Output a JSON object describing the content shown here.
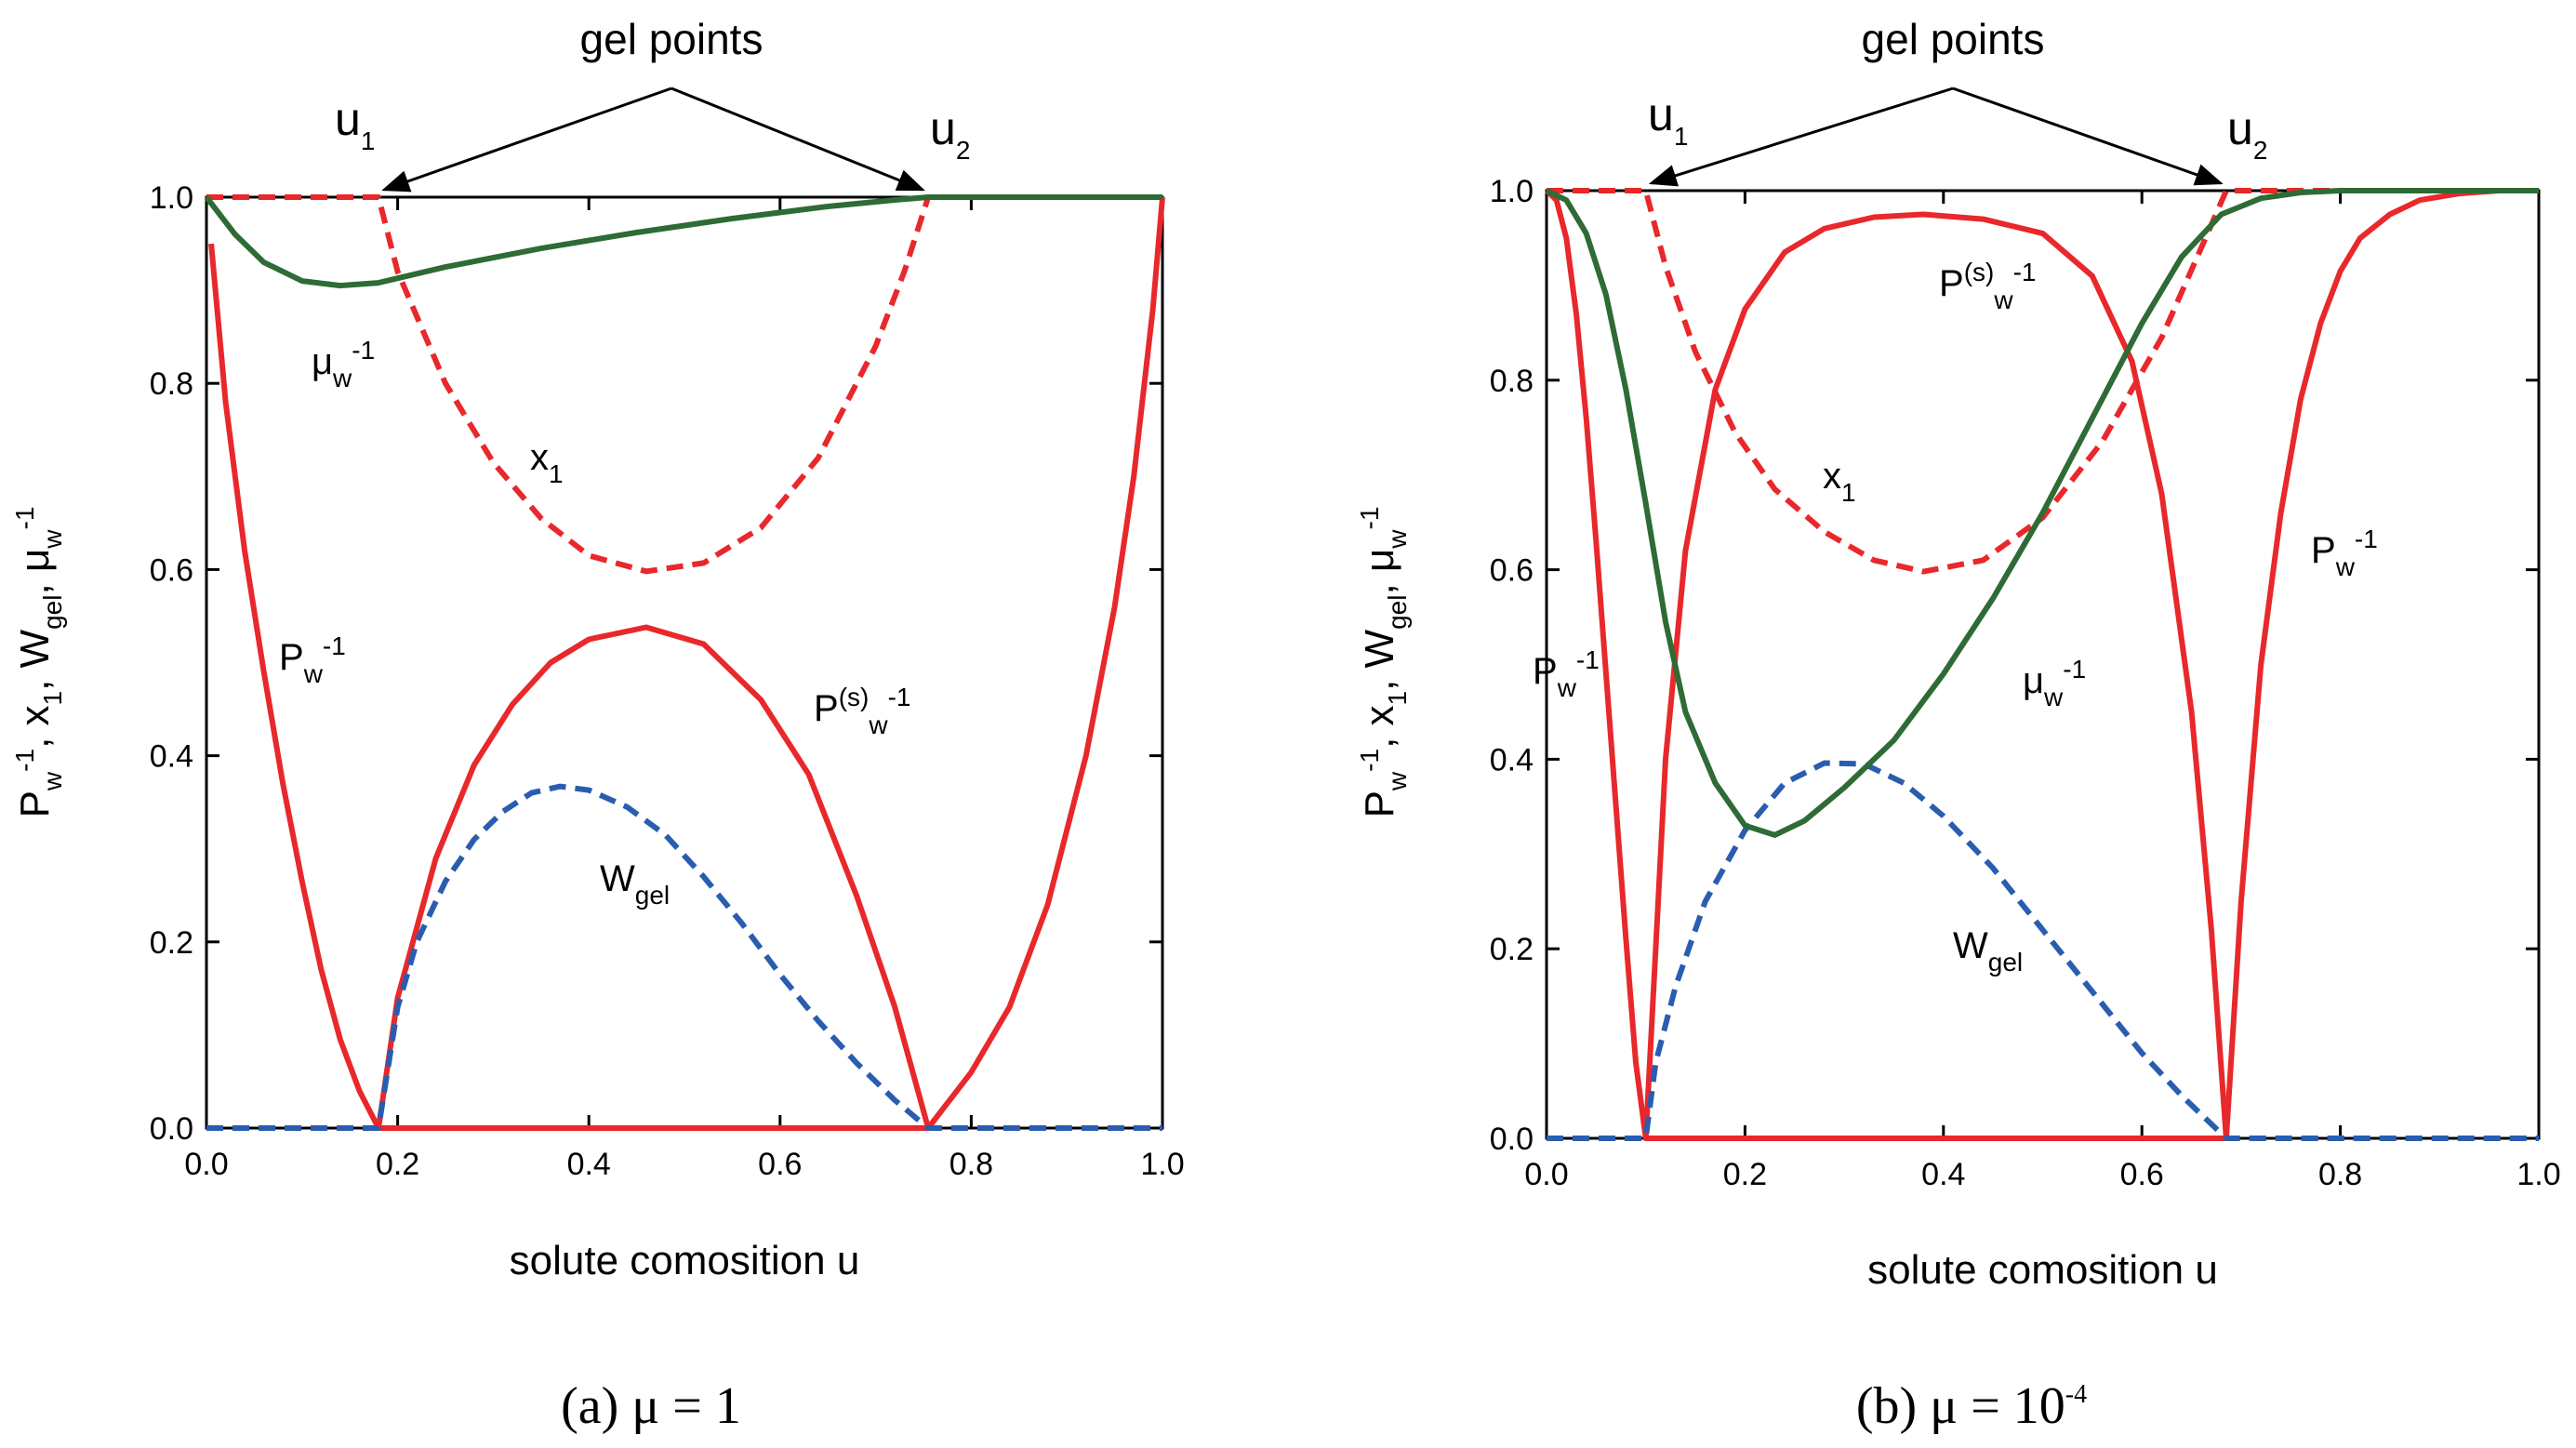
{
  "figure": {
    "gel_points_label": "gel points",
    "u1_main": "u",
    "u1_sub": "1",
    "u2_main": "u",
    "u2_sub": "2"
  },
  "chart_data": [
    {
      "type": "line",
      "id": "a",
      "caption": "(a)  μ = 1",
      "xlabel": "solute comosition  u",
      "ylabel": "P_w^-1, x_1, W_gel, μ_w^-1",
      "xlim": [
        0,
        1
      ],
      "ylim": [
        0,
        1
      ],
      "xticks": [
        "0.0",
        "0.2",
        "0.4",
        "0.6",
        "0.8",
        "1.0"
      ],
      "yticks": [
        "0.0",
        "0.2",
        "0.4",
        "0.6",
        "0.8",
        "1.0"
      ],
      "gel_points": {
        "u1": 0.18,
        "u2": 0.755
      },
      "series": [
        {
          "name": "P_w^-1",
          "color": "#e8282b",
          "dash": false,
          "x": [
            0.005,
            0.02,
            0.04,
            0.06,
            0.08,
            0.1,
            0.12,
            0.14,
            0.16,
            0.18,
            0.755,
            0.8,
            0.84,
            0.88,
            0.92,
            0.95,
            0.97,
            0.99,
            1.0
          ],
          "y": [
            0.95,
            0.78,
            0.62,
            0.49,
            0.37,
            0.265,
            0.17,
            0.095,
            0.04,
            0.0,
            0.0,
            0.06,
            0.13,
            0.24,
            0.4,
            0.56,
            0.7,
            0.88,
            1.0
          ]
        },
        {
          "name": "x_1",
          "color": "#e8282b",
          "dash": true,
          "x": [
            0.0,
            0.18,
            0.2,
            0.25,
            0.3,
            0.35,
            0.4,
            0.46,
            0.52,
            0.58,
            0.64,
            0.7,
            0.73,
            0.755,
            1.0
          ],
          "y": [
            1.0,
            1.0,
            0.92,
            0.8,
            0.715,
            0.655,
            0.615,
            0.598,
            0.607,
            0.645,
            0.72,
            0.84,
            0.92,
            1.0,
            1.0
          ]
        },
        {
          "name": "P^(s)_w^-1",
          "color": "#e8282b",
          "dash": false,
          "x": [
            0.18,
            0.2,
            0.24,
            0.28,
            0.32,
            0.36,
            0.4,
            0.46,
            0.52,
            0.58,
            0.63,
            0.68,
            0.72,
            0.755
          ],
          "y": [
            0.0,
            0.14,
            0.29,
            0.39,
            0.455,
            0.5,
            0.525,
            0.538,
            0.52,
            0.46,
            0.38,
            0.25,
            0.13,
            0.0
          ]
        },
        {
          "name": "W_gel",
          "color": "#2a5db0",
          "dash": true,
          "x": [
            0.0,
            0.18,
            0.2,
            0.22,
            0.25,
            0.28,
            0.31,
            0.34,
            0.37,
            0.4,
            0.44,
            0.48,
            0.52,
            0.56,
            0.6,
            0.64,
            0.68,
            0.72,
            0.755,
            1.0
          ],
          "y": [
            0.0,
            0.0,
            0.13,
            0.2,
            0.265,
            0.31,
            0.34,
            0.36,
            0.367,
            0.363,
            0.345,
            0.315,
            0.27,
            0.22,
            0.165,
            0.115,
            0.07,
            0.03,
            0.0,
            0.0
          ]
        },
        {
          "name": "μ_w^-1",
          "color": "#2e6b35",
          "dash": false,
          "x": [
            0.0,
            0.03,
            0.06,
            0.1,
            0.14,
            0.18,
            0.25,
            0.35,
            0.45,
            0.55,
            0.65,
            0.72,
            0.755,
            1.0
          ],
          "y": [
            1.0,
            0.96,
            0.93,
            0.91,
            0.905,
            0.908,
            0.925,
            0.945,
            0.962,
            0.977,
            0.99,
            0.997,
            1.0,
            1.0
          ]
        }
      ],
      "annotations": [
        {
          "main": "μ",
          "sub": "w",
          "sup": "-1"
        },
        {
          "main": "x",
          "sub": "1",
          "sup": ""
        },
        {
          "main": "P",
          "sub": "w",
          "sup": "-1"
        },
        {
          "main": "P",
          "pre_sup": "(s)",
          "sub": "w",
          "sup": "-1"
        },
        {
          "main": "W",
          "sub": "gel",
          "sup": ""
        }
      ]
    },
    {
      "type": "line",
      "id": "b",
      "caption": "(b)  μ = 10",
      "caption_sup": "-4",
      "xlabel": "solute comosition  u",
      "ylabel": "P_w^-1, x_1, W_gel, μ_w^-1",
      "xlim": [
        0,
        1
      ],
      "ylim": [
        0,
        1
      ],
      "xticks": [
        "0.0",
        "0.2",
        "0.4",
        "0.6",
        "0.8",
        "1.0"
      ],
      "yticks": [
        "0.0",
        "0.2",
        "0.4",
        "0.6",
        "0.8",
        "1.0"
      ],
      "gel_points": {
        "u1": 0.1,
        "u2": 0.685
      },
      "series": [
        {
          "name": "P_w^-1",
          "color": "#e8282b",
          "dash": false,
          "x": [
            0.0,
            0.01,
            0.02,
            0.03,
            0.04,
            0.05,
            0.06,
            0.07,
            0.08,
            0.09,
            0.1,
            0.685,
            0.7,
            0.72,
            0.74,
            0.76,
            0.78,
            0.8,
            0.82,
            0.85,
            0.88,
            0.92,
            0.96,
            1.0
          ],
          "y": [
            1.0,
            0.99,
            0.95,
            0.87,
            0.76,
            0.63,
            0.49,
            0.35,
            0.21,
            0.08,
            0.0,
            0.0,
            0.25,
            0.5,
            0.66,
            0.78,
            0.86,
            0.915,
            0.95,
            0.975,
            0.99,
            0.997,
            1.0,
            1.0
          ]
        },
        {
          "name": "x_1",
          "color": "#e8282b",
          "dash": true,
          "x": [
            0.0,
            0.1,
            0.12,
            0.15,
            0.19,
            0.23,
            0.28,
            0.33,
            0.38,
            0.44,
            0.5,
            0.56,
            0.62,
            0.66,
            0.685,
            1.0
          ],
          "y": [
            1.0,
            1.0,
            0.92,
            0.83,
            0.745,
            0.685,
            0.64,
            0.61,
            0.598,
            0.61,
            0.655,
            0.735,
            0.845,
            0.94,
            1.0,
            1.0
          ]
        },
        {
          "name": "P^(s)_w^-1",
          "color": "#e8282b",
          "dash": false,
          "x": [
            0.1,
            0.11,
            0.12,
            0.14,
            0.17,
            0.2,
            0.24,
            0.28,
            0.33,
            0.38,
            0.44,
            0.5,
            0.55,
            0.59,
            0.62,
            0.65,
            0.67,
            0.685
          ],
          "y": [
            0.0,
            0.2,
            0.4,
            0.62,
            0.79,
            0.875,
            0.935,
            0.96,
            0.972,
            0.975,
            0.97,
            0.955,
            0.91,
            0.82,
            0.68,
            0.45,
            0.22,
            0.0
          ]
        },
        {
          "name": "W_gel",
          "color": "#2a5db0",
          "dash": true,
          "x": [
            0.0,
            0.1,
            0.11,
            0.13,
            0.16,
            0.2,
            0.24,
            0.28,
            0.32,
            0.36,
            0.4,
            0.45,
            0.5,
            0.55,
            0.6,
            0.64,
            0.685,
            1.0
          ],
          "y": [
            0.0,
            0.0,
            0.08,
            0.16,
            0.25,
            0.325,
            0.375,
            0.396,
            0.395,
            0.375,
            0.34,
            0.285,
            0.22,
            0.155,
            0.09,
            0.045,
            0.0,
            0.0
          ]
        },
        {
          "name": "μ_w^-1",
          "color": "#2e6b35",
          "dash": false,
          "x": [
            0.0,
            0.02,
            0.04,
            0.06,
            0.08,
            0.1,
            0.12,
            0.14,
            0.17,
            0.2,
            0.23,
            0.26,
            0.3,
            0.35,
            0.4,
            0.45,
            0.5,
            0.55,
            0.6,
            0.64,
            0.68,
            0.72,
            0.76,
            0.8,
            0.9,
            1.0
          ],
          "y": [
            1.0,
            0.99,
            0.955,
            0.89,
            0.79,
            0.67,
            0.545,
            0.45,
            0.375,
            0.33,
            0.32,
            0.335,
            0.37,
            0.42,
            0.49,
            0.57,
            0.66,
            0.76,
            0.86,
            0.93,
            0.975,
            0.992,
            0.998,
            1.0,
            1.0,
            1.0
          ]
        }
      ],
      "annotations": [
        {
          "main": "P",
          "pre_sup": "(s)",
          "sub": "w",
          "sup": "-1"
        },
        {
          "main": "x",
          "sub": "1",
          "sup": ""
        },
        {
          "main": "P",
          "sub": "w",
          "sup": "-1"
        },
        {
          "main": "P",
          "sub": "w",
          "sup": "-1"
        },
        {
          "main": "μ",
          "sub": "w",
          "sup": "-1"
        },
        {
          "main": "W",
          "sub": "gel",
          "sup": ""
        }
      ]
    }
  ]
}
